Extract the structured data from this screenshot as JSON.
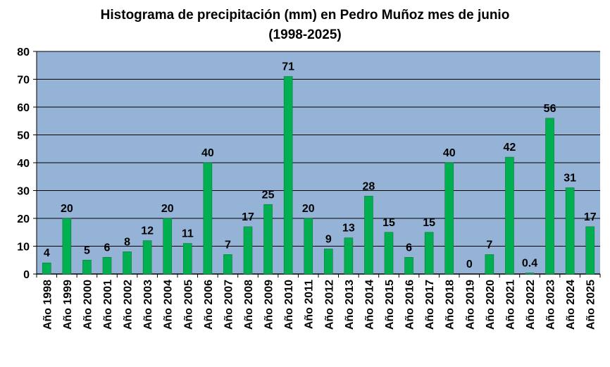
{
  "chart_data": {
    "type": "bar",
    "title_line1": "Histograma de precipitación (mm) en Pedro Muñoz mes de junio",
    "title_line2": "(1998-2025)",
    "categories": [
      "Año 1998",
      "Año 1999",
      "Año 2000",
      "Año 2001",
      "Año 2002",
      "Año 2003",
      "Año 2004",
      "Año 2005",
      "Año 2006",
      "Año 2007",
      "Año 2008",
      "Año 2009",
      "Año 2010",
      "Año 2011",
      "Año 2012",
      "Año 2013",
      "Año 2014",
      "Año 2015",
      "Año 2016",
      "Año 2017",
      "Año 2018",
      "Año 2019",
      "Año 2020",
      "Año 2021",
      "Año 2022",
      "Año 2023",
      "Año 2024",
      "Año 2025"
    ],
    "values": [
      4,
      20,
      5,
      6,
      8,
      12,
      20,
      11,
      40,
      7,
      17,
      25,
      71,
      20,
      9,
      13,
      28,
      15,
      6,
      15,
      40,
      0,
      7,
      42,
      0.4,
      56,
      31,
      17
    ],
    "data_labels": [
      "4",
      "20",
      "5",
      "6",
      "8",
      "12",
      "20",
      "11",
      "40",
      "7",
      "17",
      "25",
      "71",
      "20",
      "9",
      "13",
      "28",
      "15",
      "6",
      "15",
      "40",
      "0",
      "7",
      "42",
      "0.4",
      "56",
      "31",
      "17"
    ],
    "ylim": [
      0,
      80
    ],
    "yticks": [
      0,
      10,
      20,
      30,
      40,
      50,
      60,
      70,
      80
    ],
    "grid": true,
    "legend": "none",
    "colors": {
      "plot_background": "#95b3d7",
      "bar": "#00b050",
      "bar_outline": "#0b7a3b",
      "gridline": "#000000"
    }
  }
}
